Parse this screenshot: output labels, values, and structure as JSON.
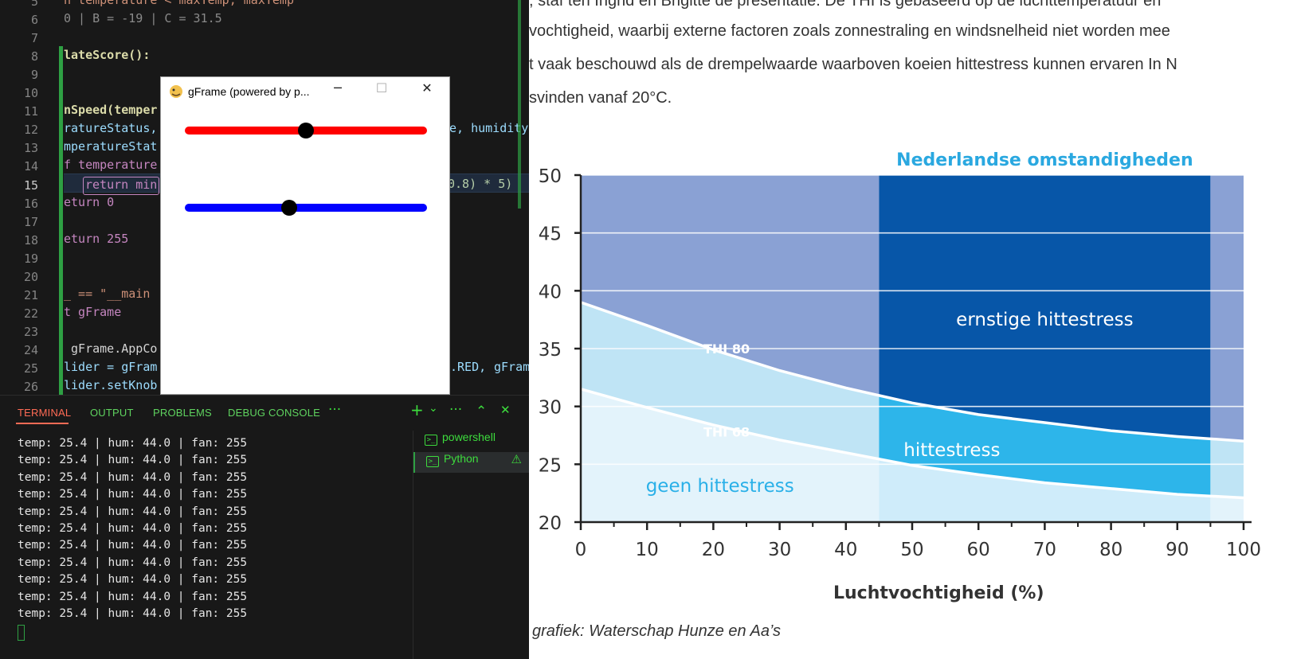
{
  "editor": {
    "lines": [
      {
        "num": "5",
        "text": "n temperature < maxTemp, maxTemp"
      },
      {
        "num": "6",
        "text": "0 | B = -19 | C = 31.5"
      },
      {
        "num": "7",
        "text": ""
      },
      {
        "num": "8",
        "text": "lateScore():"
      },
      {
        "num": "9",
        "text": ""
      },
      {
        "num": "10",
        "text": ""
      },
      {
        "num": "11",
        "text": "nSpeed(temper"
      },
      {
        "num": "12",
        "text": "ratureStatus,"
      },
      {
        "num": "13",
        "text": "mperatureStat"
      },
      {
        "num": "14",
        "text": "f temperature"
      },
      {
        "num": "15",
        "text": "return min"
      },
      {
        "num": "16",
        "text": "eturn 0"
      },
      {
        "num": "17",
        "text": ""
      },
      {
        "num": "18",
        "text": "eturn 255"
      },
      {
        "num": "19",
        "text": ""
      },
      {
        "num": "20",
        "text": ""
      },
      {
        "num": "21",
        "text": "_ == \"__main"
      },
      {
        "num": "22",
        "text": "t gFrame"
      },
      {
        "num": "23",
        "text": ""
      },
      {
        "num": "24",
        "text": " gFrame.AppCo"
      },
      {
        "num": "25",
        "text": "lider = gFram"
      },
      {
        "num": "26",
        "text": "lider.setKnob"
      }
    ],
    "right_fragments": {
      "l12": "e, humidity",
      "l15": "0.8) * 5)",
      "l25a": ".RED, ",
      "l25b": "gFram"
    }
  },
  "gframe": {
    "title": "gFrame (powered by p...",
    "minimize": "─",
    "maximize": "☐",
    "close": "✕",
    "slider_red": {
      "color": "#ff0000",
      "value": 0.5
    },
    "slider_blue": {
      "color": "#0000ff",
      "value": 0.43
    }
  },
  "panel": {
    "tabs": [
      "TERMINAL",
      "OUTPUT",
      "PROBLEMS",
      "DEBUG CONSOLE"
    ],
    "more": "···",
    "controls": {
      "add": "+",
      "dropdown": "⌄",
      "more": "···",
      "maximize": "⌃",
      "close": "✕"
    },
    "terminal_lines": [
      "temp: 25.4 | hum: 44.0 | fan: 255",
      "temp: 25.4 | hum: 44.0 | fan: 255",
      "temp: 25.4 | hum: 44.0 | fan: 255",
      "temp: 25.4 | hum: 44.0 | fan: 255",
      "temp: 25.4 | hum: 44.0 | fan: 255",
      "temp: 25.4 | hum: 44.0 | fan: 255",
      "temp: 25.4 | hum: 44.0 | fan: 255",
      "temp: 25.4 | hum: 44.0 | fan: 255",
      "temp: 25.4 | hum: 44.0 | fan: 255",
      "temp: 25.4 | hum: 44.0 | fan: 255",
      "temp: 25.4 | hum: 44.0 | fan: 255"
    ],
    "sessions": [
      {
        "label": "powershell",
        "icon": "terminal-icon"
      },
      {
        "label": "Python",
        "icon": "terminal-icon",
        "warning": "⚠"
      }
    ]
  },
  "article": {
    "lines": [
      ", staf ten Ingrid en Brigitte de presentatie. De THI is gebaseerd op de luchttemperatuur en",
      "vochtigheid, waarbij externe factoren zoals zonnestraling en windsnelheid niet worden mee",
      "t vaak beschouwd als de drempelwaarde waarboven koeien hittestress kunnen ervaren In N",
      "svinden vanaf 20°C."
    ],
    "caption": "grafiek: Waterschap Hunze en Aa’s"
  },
  "chart_data": {
    "type": "area",
    "title": "Nederlandse omstandigheden",
    "xlabel": "Luchtvochtigheid (%)",
    "ylabel": "",
    "xlim": [
      0,
      100
    ],
    "ylim": [
      20,
      50
    ],
    "x_ticks": [
      0,
      10,
      20,
      30,
      40,
      50,
      60,
      70,
      80,
      90,
      100
    ],
    "y_ticks": [
      20,
      25,
      30,
      35,
      40,
      45,
      50
    ],
    "grid": true,
    "curves": [
      {
        "name": "THI 80",
        "x": [
          0,
          10,
          20,
          30,
          40,
          50,
          60,
          70,
          80,
          90,
          100
        ],
        "y": [
          39,
          37,
          34.9,
          33.1,
          31.6,
          30.3,
          29.3,
          28.6,
          27.9,
          27.4,
          27.0
        ]
      },
      {
        "name": "THI 68",
        "x": [
          0,
          10,
          20,
          30,
          40,
          50,
          60,
          70,
          80,
          90,
          100
        ],
        "y": [
          31.5,
          29.9,
          28.4,
          27.1,
          26.0,
          24.9,
          24.1,
          23.4,
          22.9,
          22.4,
          22.1
        ]
      }
    ],
    "band_labels": [
      "ernstige hittestress",
      "hittestress",
      "geen hittestress"
    ],
    "highlight_range_x": [
      45,
      95
    ],
    "colors": {
      "severe_light": "#8aa1d4",
      "severe_dark": "#0756a8",
      "stress_light": "#bfe4f5",
      "stress_dark": "#2db5ea",
      "none_light": "#e3f3fb",
      "none_dark": "#cfecfa",
      "title": "#2aa8e0"
    }
  }
}
